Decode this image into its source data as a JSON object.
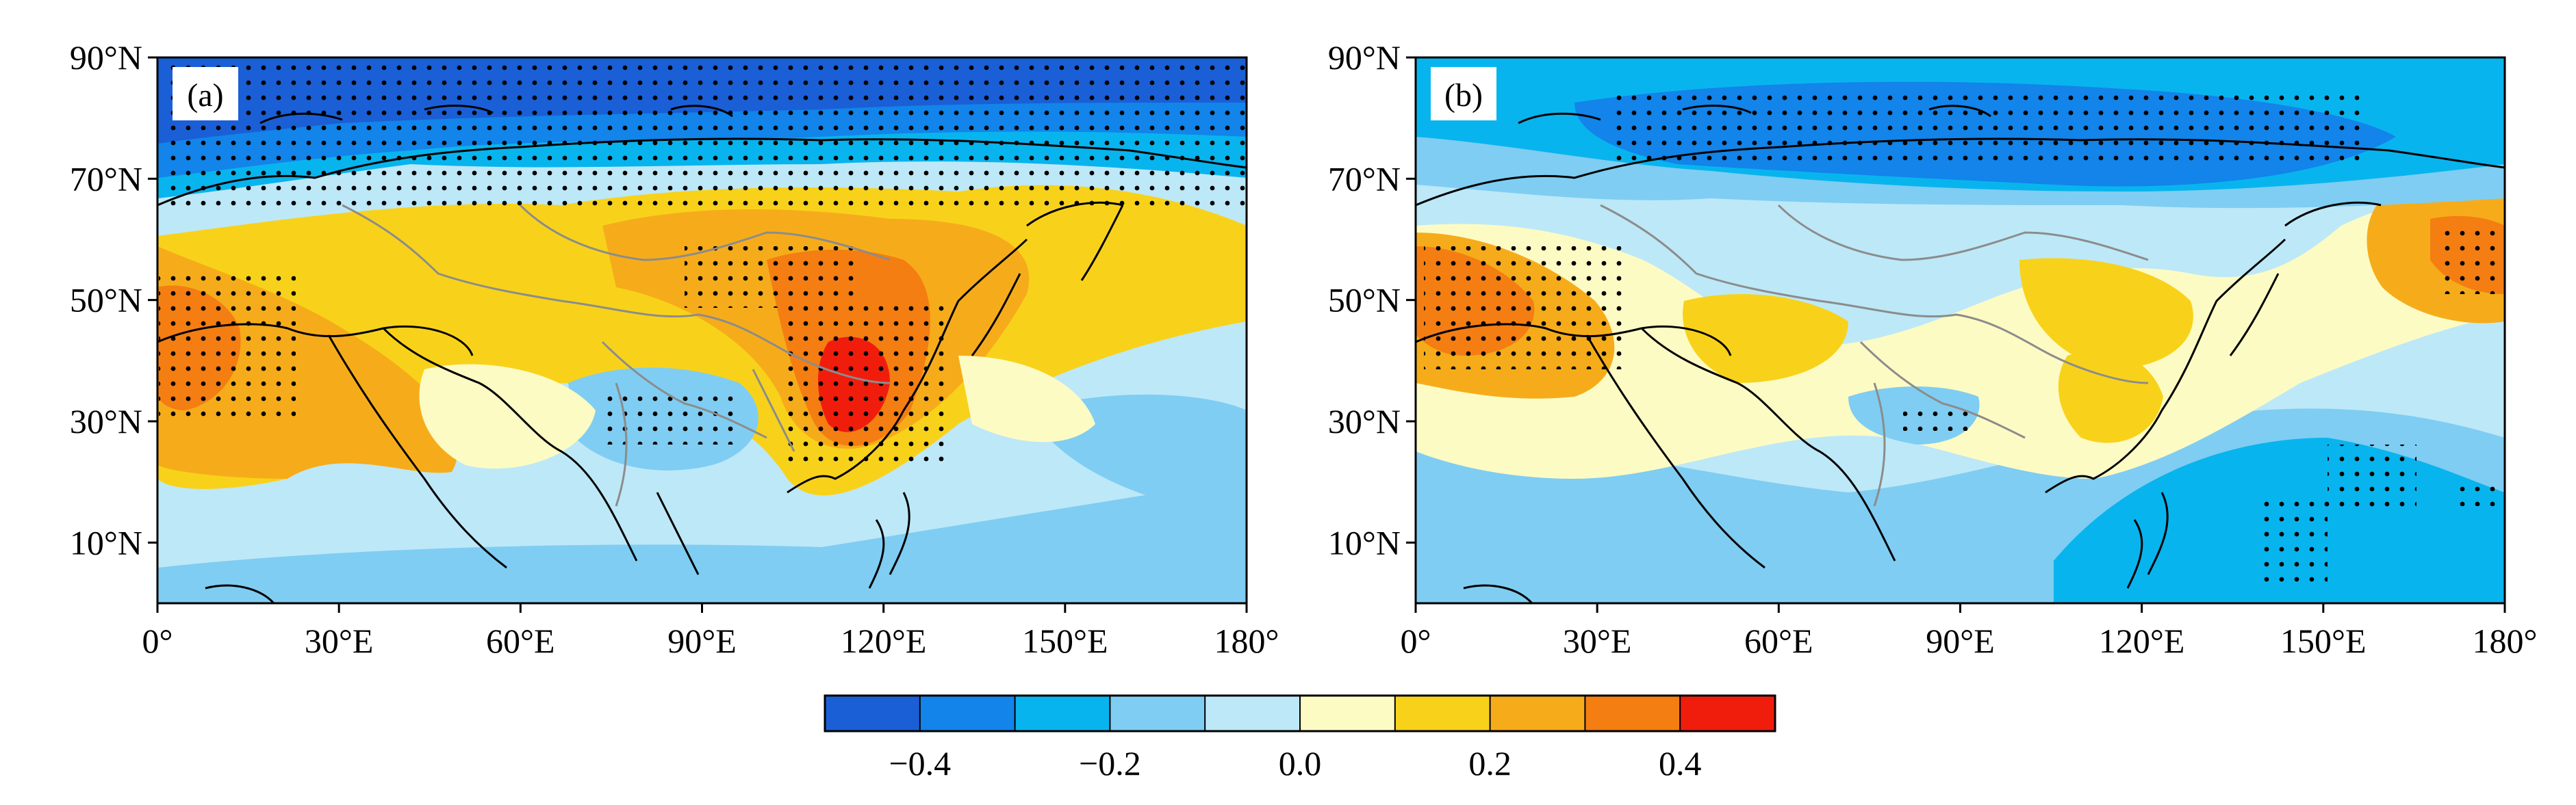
{
  "panels": [
    {
      "id": "a",
      "label": "(a)"
    },
    {
      "id": "b",
      "label": "(b)"
    }
  ],
  "axes": {
    "lat_ticks": [
      "90°N",
      "70°N",
      "50°N",
      "30°N",
      "10°N"
    ],
    "lon_ticks": [
      "0°",
      "30°E",
      "60°E",
      "90°E",
      "120°E",
      "150°E",
      "180°"
    ],
    "lat_range": [
      0,
      90
    ],
    "lon_range": [
      0,
      180
    ]
  },
  "colorbar": {
    "bounds": [
      -0.5,
      0.5
    ],
    "colors": [
      "#1a5fd6",
      "#1284ea",
      "#08b4ee",
      "#7fcdf2",
      "#bde8f8",
      "#fdfbc4",
      "#f8d21a",
      "#f6ac1a",
      "#f47e12",
      "#f01d0d"
    ],
    "tick_labels": [
      "−0.4",
      "−0.2",
      "0.0",
      "0.2",
      "0.4"
    ],
    "tick_values": [
      -0.4,
      -0.2,
      0.0,
      0.2,
      0.4
    ]
  },
  "colors": {
    "coastline": "#000000",
    "borders": "#888888",
    "stipple": "#000000"
  }
}
